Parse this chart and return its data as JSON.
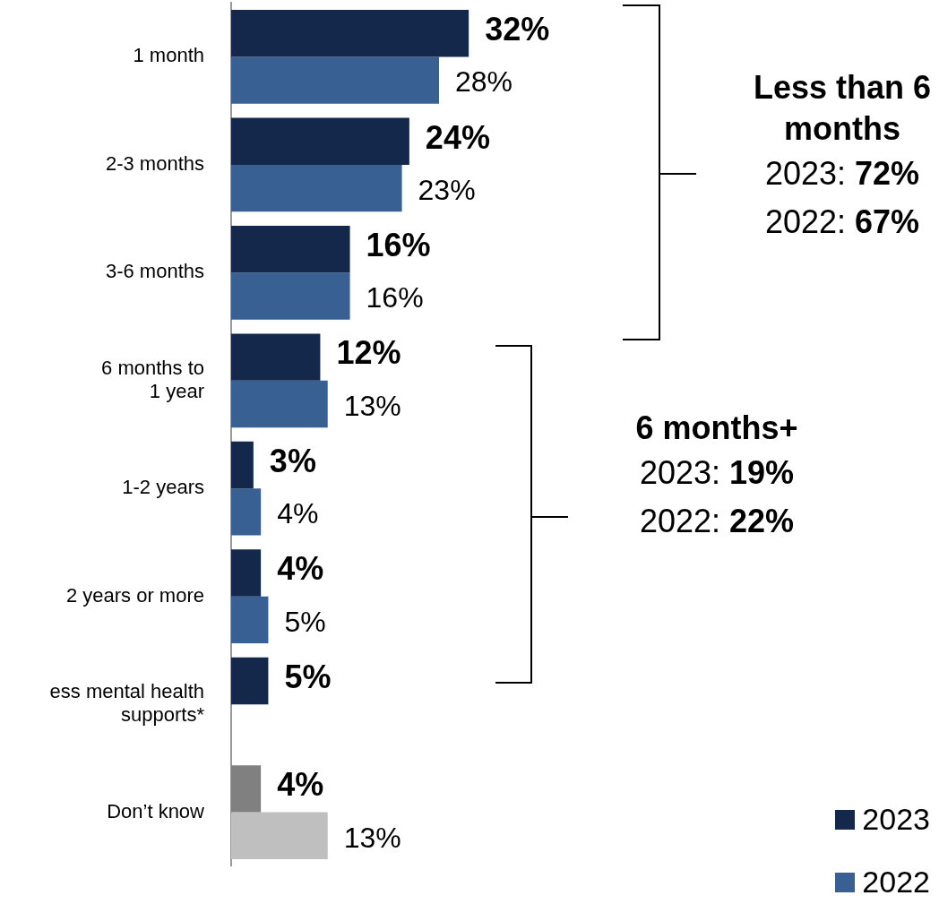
{
  "chart_data": {
    "type": "bar",
    "orientation": "horizontal",
    "categories": [
      "1 month",
      "2-3 months",
      "3-6 months",
      "6 months to\n1 year",
      "1-2 years",
      "2 years or more",
      "ess mental health\nsupports*",
      "Don’t know"
    ],
    "series": [
      {
        "name": "2023",
        "color": "#13284a",
        "colors": [
          "#13284a",
          "#13284a",
          "#13284a",
          "#13284a",
          "#13284a",
          "#13284a",
          "#13284a",
          "#808080"
        ],
        "values": [
          32,
          24,
          16,
          12,
          3,
          4,
          5,
          4
        ],
        "value_labels": [
          "32%",
          "24%",
          "16%",
          "12%",
          "3%",
          "4%",
          "5%",
          "4%"
        ]
      },
      {
        "name": "2022",
        "color": "#386092",
        "colors": [
          "#386092",
          "#386092",
          "#386092",
          "#386092",
          "#386092",
          "#386092",
          "#386092",
          "#bfbfbf"
        ],
        "values": [
          28,
          23,
          16,
          13,
          4,
          5,
          null,
          13
        ],
        "value_labels": [
          "28%",
          "23%",
          "16%",
          "13%",
          "4%",
          "5%",
          null,
          "13%"
        ]
      }
    ],
    "annotations": [
      "Less than 6 months",
      "2023: 72%",
      "2022: 67%",
      "6 months+",
      "2023: 19%",
      "2022: 22%"
    ],
    "legend": "bottom right"
  }
}
